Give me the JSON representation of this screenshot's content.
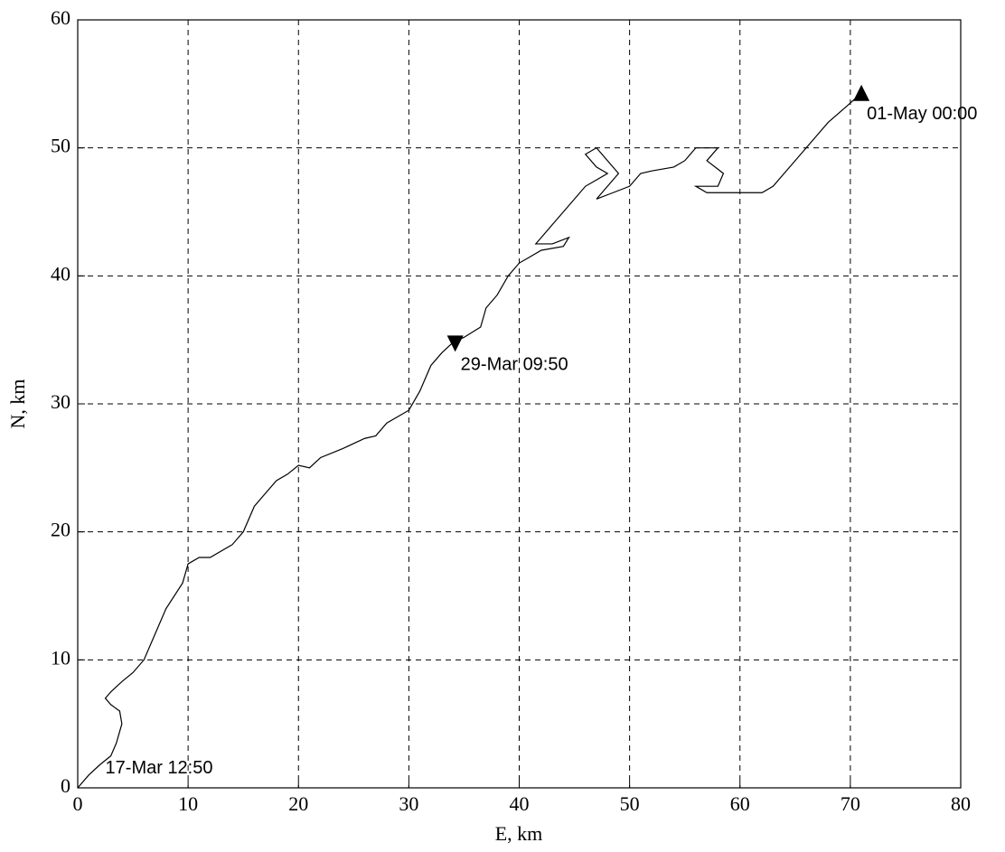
{
  "chart_data": {
    "type": "line",
    "xlabel": "E, km",
    "ylabel": "N, km",
    "xlim": [
      0,
      80
    ],
    "ylim": [
      0,
      60
    ],
    "xticks": [
      0,
      10,
      20,
      30,
      40,
      50,
      60,
      70,
      80
    ],
    "yticks": [
      0,
      10,
      20,
      30,
      40,
      50,
      60
    ],
    "grid": true,
    "series": [
      {
        "color": "#000000",
        "x": [
          0,
          1,
          2,
          3,
          3.5,
          4,
          3.8,
          3,
          2.5,
          3,
          4,
          5,
          6,
          7,
          8,
          9.5,
          10,
          11,
          12,
          14,
          15,
          16,
          17,
          18,
          19,
          20,
          21,
          22,
          24,
          26,
          27,
          28,
          30,
          31,
          31.5,
          32,
          33,
          34,
          35,
          36.5,
          37,
          38,
          39,
          40,
          41,
          42,
          44,
          44.5,
          43,
          41.5,
          42,
          43,
          44,
          45,
          46,
          47,
          48,
          47,
          46,
          47,
          48,
          49,
          48,
          47,
          48.5,
          50,
          51,
          52,
          54,
          55,
          56,
          58,
          57,
          58.5,
          58,
          56,
          57,
          60,
          62,
          63,
          64,
          65,
          67,
          68,
          70,
          71
        ],
        "values": [
          0,
          1,
          1.8,
          2.5,
          3.5,
          5,
          6,
          6.5,
          7,
          7.5,
          8.3,
          9,
          10,
          12,
          14,
          16,
          17.5,
          18,
          18,
          19,
          20,
          22,
          23,
          24,
          24.5,
          25.2,
          25,
          25.8,
          26.5,
          27.3,
          27.5,
          28.5,
          29.5,
          31,
          32,
          33,
          34,
          34.8,
          35.2,
          36,
          37.5,
          38.5,
          40,
          41,
          41.5,
          42,
          42.3,
          43,
          42.5,
          42.5,
          43,
          44,
          45,
          46,
          47,
          47.5,
          48,
          48.5,
          49.5,
          50,
          49,
          48,
          47,
          46,
          46.5,
          47,
          48,
          48.2,
          48.5,
          49,
          50,
          50,
          49,
          48,
          47,
          47,
          46.5,
          46.5,
          46.5,
          47,
          48,
          49,
          51,
          52,
          53.5,
          54.3
        ]
      }
    ],
    "annotations": [
      {
        "text": "17-Mar 12:50",
        "x": 2.5,
        "y": 1.5
      },
      {
        "text": "29-Mar 09:50",
        "x": 34.2,
        "y": 34.7,
        "marker": "v"
      },
      {
        "text": "01-May 00:00",
        "x": 71,
        "y": 54.3,
        "marker": "^"
      }
    ]
  }
}
